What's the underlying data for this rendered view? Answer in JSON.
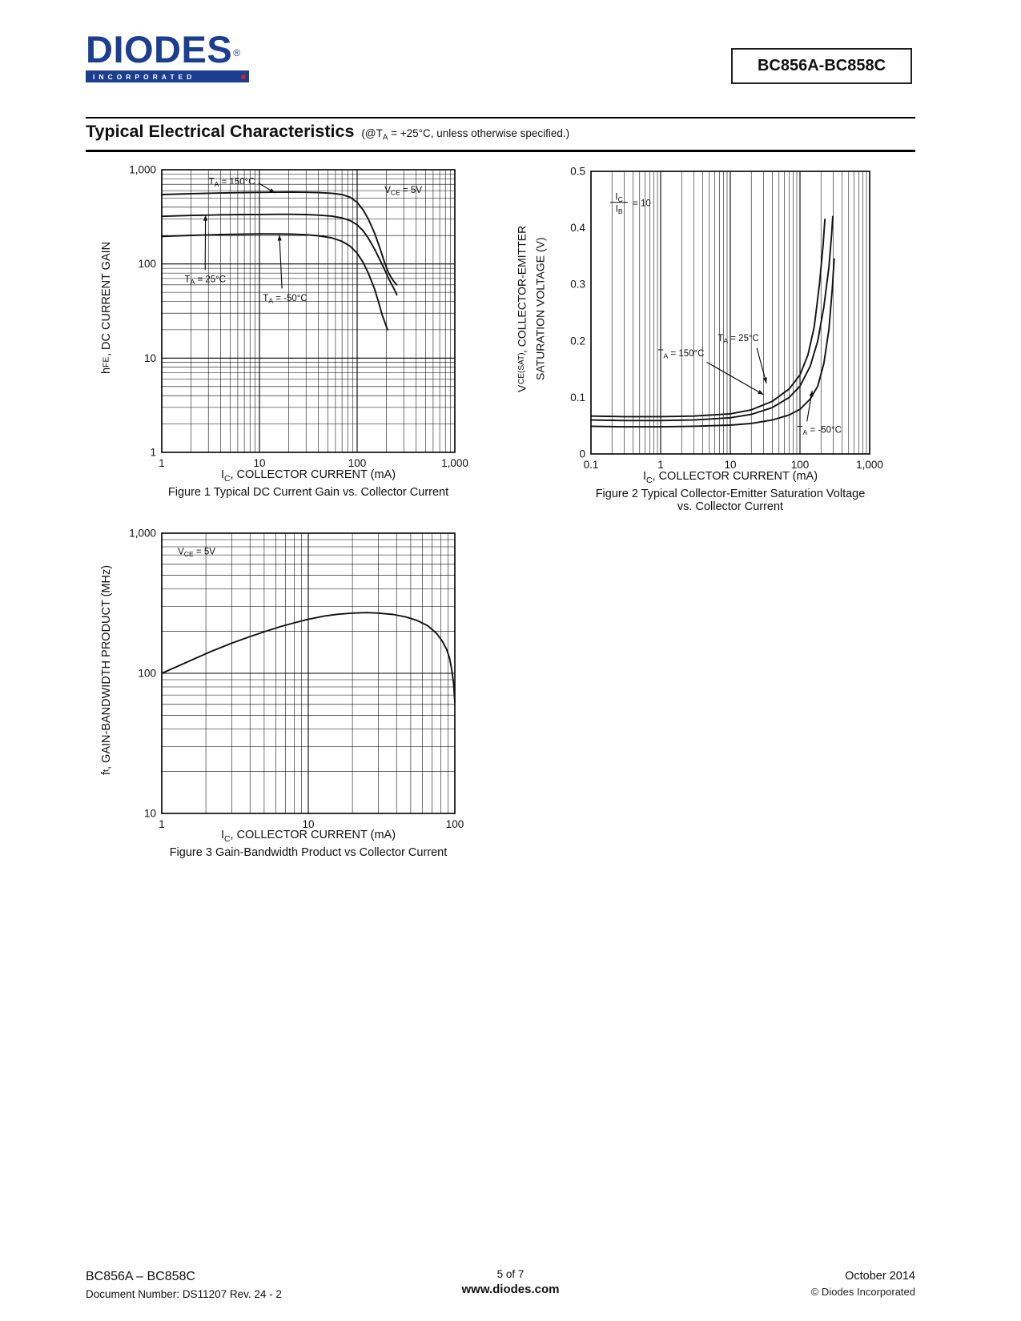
{
  "header": {
    "logo_text": "DIODES",
    "logo_registered": "®",
    "logo_sub": "INCORPORATED",
    "part_number": "BC856A-BC858C"
  },
  "section": {
    "title": "Typical Electrical Characteristics",
    "condition": "(@T_{A} = +25°C, unless otherwise specified.)"
  },
  "chart_data": [
    {
      "id": "fig1",
      "type": "line",
      "title": "Figure 1 Typical DC Current Gain vs. Collector Current",
      "xlabel": "I_{C}, COLLECTOR CURRENT (mA)",
      "ylabel": "h_{FE}, DC CURRENT GAIN",
      "xscale": "log",
      "yscale": "log",
      "xlim": [
        1,
        1000
      ],
      "ylim": [
        1,
        1000
      ],
      "grid": "both",
      "xticks": [
        {
          "v": 1,
          "label": "1"
        },
        {
          "v": 10,
          "label": "10"
        },
        {
          "v": 100,
          "label": "100"
        },
        {
          "v": 1000,
          "label": "1,000"
        }
      ],
      "yticks": [
        {
          "v": 1,
          "label": "1"
        },
        {
          "v": 10,
          "label": "10"
        },
        {
          "v": 100,
          "label": "100"
        },
        {
          "v": 1000,
          "label": "1,000"
        }
      ],
      "series": [
        {
          "name": "T_{A} = 150°C",
          "points": [
            [
              1,
              545
            ],
            [
              2,
              557
            ],
            [
              4,
              566
            ],
            [
              7,
              572
            ],
            [
              10,
              575
            ],
            [
              15,
              577
            ],
            [
              22,
              578
            ],
            [
              30,
              576
            ],
            [
              40,
              572
            ],
            [
              55,
              563
            ],
            [
              70,
              545
            ],
            [
              85,
              510
            ],
            [
              100,
              450
            ],
            [
              115,
              375
            ],
            [
              130,
              300
            ],
            [
              150,
              215
            ],
            [
              170,
              150
            ],
            [
              190,
              105
            ],
            [
              210,
              80
            ],
            [
              235,
              66
            ],
            [
              255,
              60
            ]
          ]
        },
        {
          "name": "T_{A} = 25°C",
          "points": [
            [
              1,
              320
            ],
            [
              2,
              327
            ],
            [
              4,
              332
            ],
            [
              7,
              334
            ],
            [
              10,
              335
            ],
            [
              15,
              336
            ],
            [
              22,
              336
            ],
            [
              30,
              334
            ],
            [
              40,
              330
            ],
            [
              55,
              322
            ],
            [
              70,
              308
            ],
            [
              85,
              288
            ],
            [
              100,
              260
            ],
            [
              115,
              225
            ],
            [
              130,
              188
            ],
            [
              150,
              145
            ],
            [
              170,
              112
            ],
            [
              190,
              88
            ],
            [
              210,
              70
            ],
            [
              235,
              56
            ],
            [
              255,
              47
            ]
          ]
        },
        {
          "name": "T_{A} = -50°C",
          "points": [
            [
              1,
              196
            ],
            [
              2,
              201
            ],
            [
              4,
              205
            ],
            [
              7,
              207
            ],
            [
              10,
              208
            ],
            [
              15,
              208
            ],
            [
              22,
              207
            ],
            [
              30,
              204
            ],
            [
              40,
              199
            ],
            [
              55,
              189
            ],
            [
              70,
              174
            ],
            [
              85,
              154
            ],
            [
              100,
              130
            ],
            [
              115,
              104
            ],
            [
              130,
              80
            ],
            [
              150,
              55
            ],
            [
              165,
              40
            ],
            [
              180,
              29
            ],
            [
              195,
              23
            ],
            [
              205,
              20
            ]
          ]
        }
      ],
      "annotations": [
        {
          "type": "label",
          "text": "V_{CE} = 5V",
          "lx": 0.76,
          "ly": 0.082,
          "anchor": "start"
        },
        {
          "type": "arrow",
          "text": "T_{A} = 150°C",
          "lx": 0.16,
          "ly": 0.052,
          "anchor": "start",
          "sx": 0.33,
          "sy": 0.047,
          "ax": 14.5,
          "ay": 565
        },
        {
          "type": "arrow",
          "text": "T_{A} = 25°C",
          "lx": 0.078,
          "ly": 0.398,
          "anchor": "start",
          "sx": 0.148,
          "sy": 0.355,
          "ax": 2.8,
          "ay": 330
        },
        {
          "type": "arrow",
          "text": "T_{A} = -50°C",
          "lx": 0.345,
          "ly": 0.465,
          "anchor": "start",
          "sx": 0.41,
          "sy": 0.42,
          "ax": 16,
          "ay": 203
        }
      ]
    },
    {
      "id": "fig2",
      "type": "line",
      "title": "Figure 2 Typical Collector-Emitter Saturation Voltage\nvs. Collector Current",
      "xlabel": "I_{C}, COLLECTOR CURRENT (mA)",
      "ylabel": "V_{CE(SAT)}, COLLECTOR-EMITTER SATURATION VOLTAGE (V)",
      "ylabel_lines": [
        "V_{CE(SAT)}, COLLECTOR-EMITTER",
        "SATURATION VOLTAGE (V)"
      ],
      "xscale": "log",
      "yscale": "linear",
      "xlim": [
        0.1,
        1000
      ],
      "ylim": [
        0,
        0.5
      ],
      "grid": "x",
      "xticks": [
        {
          "v": 0.1,
          "label": "0.1"
        },
        {
          "v": 1,
          "label": "1"
        },
        {
          "v": 10,
          "label": "10"
        },
        {
          "v": 100,
          "label": "100"
        },
        {
          "v": 1000,
          "label": "1,000"
        }
      ],
      "yticks": [
        {
          "v": 0,
          "label": "0"
        },
        {
          "v": 0.1,
          "label": "0.1"
        },
        {
          "v": 0.2,
          "label": "0.2"
        },
        {
          "v": 0.3,
          "label": "0.3"
        },
        {
          "v": 0.4,
          "label": "0.4"
        },
        {
          "v": 0.5,
          "label": "0.5"
        }
      ],
      "series": [
        {
          "name": "T_{A} = 150°C",
          "points": [
            [
              0.1,
              0.067
            ],
            [
              0.3,
              0.066
            ],
            [
              1,
              0.066
            ],
            [
              3,
              0.067
            ],
            [
              10,
              0.071
            ],
            [
              20,
              0.078
            ],
            [
              40,
              0.093
            ],
            [
              70,
              0.115
            ],
            [
              100,
              0.14
            ],
            [
              130,
              0.175
            ],
            [
              160,
              0.225
            ],
            [
              190,
              0.3
            ],
            [
              215,
              0.37
            ],
            [
              228,
              0.415
            ]
          ]
        },
        {
          "name": "T_{A} = 25°C",
          "points": [
            [
              0.1,
              0.06
            ],
            [
              0.3,
              0.059
            ],
            [
              1,
              0.059
            ],
            [
              3,
              0.06
            ],
            [
              10,
              0.064
            ],
            [
              20,
              0.07
            ],
            [
              40,
              0.082
            ],
            [
              70,
              0.1
            ],
            [
              100,
              0.12
            ],
            [
              140,
              0.155
            ],
            [
              180,
              0.2
            ],
            [
              220,
              0.26
            ],
            [
              260,
              0.33
            ],
            [
              285,
              0.39
            ],
            [
              295,
              0.42
            ]
          ]
        },
        {
          "name": "T_{A} = -50°C",
          "points": [
            [
              0.1,
              0.049
            ],
            [
              0.3,
              0.048
            ],
            [
              1,
              0.048
            ],
            [
              3,
              0.049
            ],
            [
              10,
              0.051
            ],
            [
              20,
              0.054
            ],
            [
              40,
              0.06
            ],
            [
              70,
              0.069
            ],
            [
              100,
              0.079
            ],
            [
              140,
              0.097
            ],
            [
              180,
              0.12
            ],
            [
              220,
              0.16
            ],
            [
              260,
              0.22
            ],
            [
              290,
              0.29
            ],
            [
              310,
              0.345
            ]
          ]
        }
      ],
      "annotations": [
        {
          "type": "fraction",
          "num": "I_{C}",
          "den": "I_{B}",
          "rhs": "= 10",
          "lx": 0.075,
          "ly": 0.1
        },
        {
          "type": "arrow",
          "text": "T_{A} = 25°C",
          "lx": 0.455,
          "ly": 0.6,
          "anchor": "start",
          "sx": 0.595,
          "sy": 0.625,
          "ax": 33,
          "ay": 0.125
        },
        {
          "type": "arrow",
          "text": "T_{A} = 150°C",
          "lx": 0.24,
          "ly": 0.655,
          "anchor": "start",
          "sx": 0.415,
          "sy": 0.675,
          "ax": 30,
          "ay": 0.105
        },
        {
          "type": "arrow",
          "text": "T_{A} = -50°C",
          "lx": 0.74,
          "ly": 0.925,
          "anchor": "start",
          "sx": 0.775,
          "sy": 0.885,
          "ax": 150,
          "ay": 0.112
        }
      ]
    },
    {
      "id": "fig3",
      "type": "line",
      "title": "Figure 3 Gain-Bandwidth Product vs Collector Current",
      "xlabel": "I_{C}, COLLECTOR CURRENT (mA)",
      "ylabel": "f_{t}, GAIN-BANDWIDTH PRODUCT (MHz)",
      "xscale": "log",
      "yscale": "log",
      "xlim": [
        1,
        100
      ],
      "ylim": [
        10,
        1000
      ],
      "grid": "both",
      "xticks": [
        {
          "v": 1,
          "label": "1"
        },
        {
          "v": 10,
          "label": "10"
        },
        {
          "v": 100,
          "label": "100"
        }
      ],
      "yticks": [
        {
          "v": 10,
          "label": "10"
        },
        {
          "v": 100,
          "label": "100"
        },
        {
          "v": 1000,
          "label": "1,000"
        }
      ],
      "series": [
        {
          "name": "f_{t}",
          "points": [
            [
              1,
              100
            ],
            [
              1.3,
              113
            ],
            [
              1.7,
              128
            ],
            [
              2.2,
              144
            ],
            [
              3,
              164
            ],
            [
              4,
              183
            ],
            [
              5,
              198
            ],
            [
              6.5,
              216
            ],
            [
              8,
              229
            ],
            [
              10,
              243
            ],
            [
              13,
              257
            ],
            [
              16,
              264
            ],
            [
              20,
              269
            ],
            [
              25,
              271
            ],
            [
              30,
              269
            ],
            [
              38,
              263
            ],
            [
              46,
              253
            ],
            [
              55,
              239
            ],
            [
              65,
              219
            ],
            [
              75,
              193
            ],
            [
              82,
              170
            ],
            [
              88,
              148
            ],
            [
              92,
              128
            ],
            [
              95,
              108
            ],
            [
              98,
              85
            ],
            [
              100,
              62
            ]
          ]
        }
      ],
      "annotations": [
        {
          "type": "label",
          "text": "V_{CE} = 5V",
          "lx": 0.055,
          "ly": 0.075,
          "anchor": "start"
        }
      ]
    }
  ],
  "footer": {
    "left_line1": "BC856A – BC858C",
    "left_line2_label": "Document Number:",
    "left_line2_value": "DS11207 Rev. 24 - 2",
    "center_line1": "5 of 7",
    "center_line2": "www.diodes.com",
    "right_line1": "October 2014",
    "right_line2": "© Diodes Incorporated"
  }
}
